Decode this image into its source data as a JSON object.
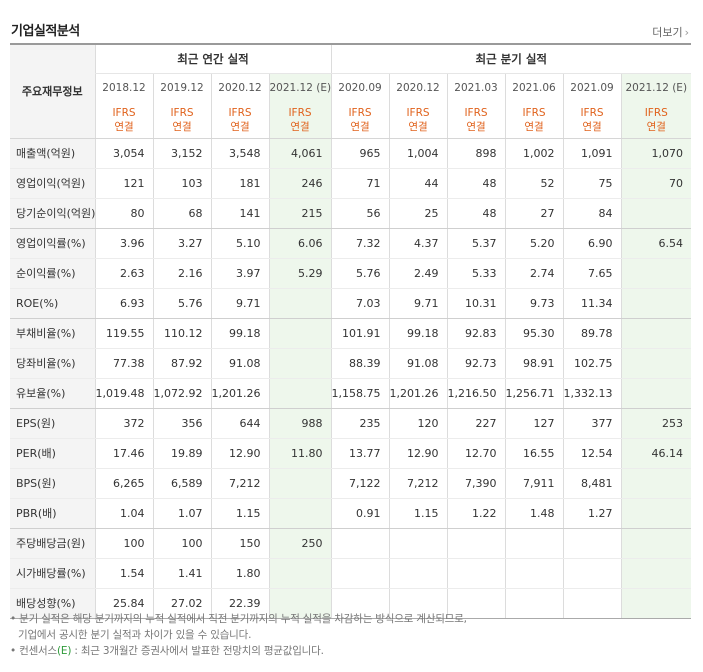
{
  "section_title": "기업실적분석",
  "more_label": "더보기",
  "header": {
    "corner_label": "주요재무정보",
    "annual_label": "최근 연간 실적",
    "quarter_label": "최근 분기 실적",
    "annual_periods": [
      "2018.12",
      "2019.12",
      "2020.12",
      "2021.12 (E)"
    ],
    "quarter_periods": [
      "2020.09",
      "2020.12",
      "2021.03",
      "2021.06",
      "2021.09",
      "2021.12 (E)"
    ],
    "basis_line1": "IFRS",
    "basis_line2": "연결"
  },
  "rows": [
    {
      "label": "매출액(억원)",
      "values": [
        "3,054",
        "3,152",
        "3,548",
        "4,061",
        "965",
        "1,004",
        "898",
        "1,002",
        "1,091",
        "1,070"
      ]
    },
    {
      "label": "영업이익(억원)",
      "values": [
        "121",
        "103",
        "181",
        "246",
        "71",
        "44",
        "48",
        "52",
        "75",
        "70"
      ]
    },
    {
      "label": "당기순이익(억원)",
      "values": [
        "80",
        "68",
        "141",
        "215",
        "56",
        "25",
        "48",
        "27",
        "84",
        ""
      ]
    },
    {
      "label": "영업이익률(%)",
      "values": [
        "3.96",
        "3.27",
        "5.10",
        "6.06",
        "7.32",
        "4.37",
        "5.37",
        "5.20",
        "6.90",
        "6.54"
      ]
    },
    {
      "label": "순이익률(%)",
      "values": [
        "2.63",
        "2.16",
        "3.97",
        "5.29",
        "5.76",
        "2.49",
        "5.33",
        "2.74",
        "7.65",
        ""
      ]
    },
    {
      "label": "ROE(%)",
      "values": [
        "6.93",
        "5.76",
        "9.71",
        "",
        "7.03",
        "9.71",
        "10.31",
        "9.73",
        "11.34",
        ""
      ]
    },
    {
      "label": "부채비율(%)",
      "values": [
        "119.55",
        "110.12",
        "99.18",
        "",
        "101.91",
        "99.18",
        "92.83",
        "95.30",
        "89.78",
        ""
      ]
    },
    {
      "label": "당좌비율(%)",
      "values": [
        "77.38",
        "87.92",
        "91.08",
        "",
        "88.39",
        "91.08",
        "92.73",
        "98.91",
        "102.75",
        ""
      ]
    },
    {
      "label": "유보율(%)",
      "values": [
        "1,019.48",
        "1,072.92",
        "1,201.26",
        "",
        "1,158.75",
        "1,201.26",
        "1,216.50",
        "1,256.71",
        "1,332.13",
        ""
      ]
    },
    {
      "label": "EPS(원)",
      "values": [
        "372",
        "356",
        "644",
        "988",
        "235",
        "120",
        "227",
        "127",
        "377",
        "253"
      ]
    },
    {
      "label": "PER(배)",
      "values": [
        "17.46",
        "19.89",
        "12.90",
        "11.80",
        "13.77",
        "12.90",
        "12.70",
        "16.55",
        "12.54",
        "46.14"
      ]
    },
    {
      "label": "BPS(원)",
      "values": [
        "6,265",
        "6,589",
        "7,212",
        "",
        "7,122",
        "7,212",
        "7,390",
        "7,911",
        "8,481",
        ""
      ]
    },
    {
      "label": "PBR(배)",
      "values": [
        "1.04",
        "1.07",
        "1.15",
        "",
        "0.91",
        "1.15",
        "1.22",
        "1.48",
        "1.27",
        ""
      ]
    },
    {
      "label": "주당배당금(원)",
      "values": [
        "100",
        "100",
        "150",
        "250",
        "",
        "",
        "",
        "",
        "",
        ""
      ]
    },
    {
      "label": "시가배당률(%)",
      "values": [
        "1.54",
        "1.41",
        "1.80",
        "",
        "",
        "",
        "",
        "",
        "",
        ""
      ]
    },
    {
      "label": "배당성향(%)",
      "values": [
        "25.84",
        "27.02",
        "22.39",
        "",
        "",
        "",
        "",
        "",
        "",
        ""
      ]
    }
  ],
  "notes": {
    "line1": "분기 실적은 해당 분기까지의 누적 실적에서 직전 분기까지의 누적 실적을 차감하는 방식으로 계산되므로,",
    "line2": "기업에서 공시한 분기 실적과 차이가 있을 수 있습니다.",
    "line3_prefix": "컨센서스",
    "line3_mark": "(E)",
    "line3_rest": " : 최근 3개월간 증권사에서 발표한 전망치의 평균값입니다."
  }
}
